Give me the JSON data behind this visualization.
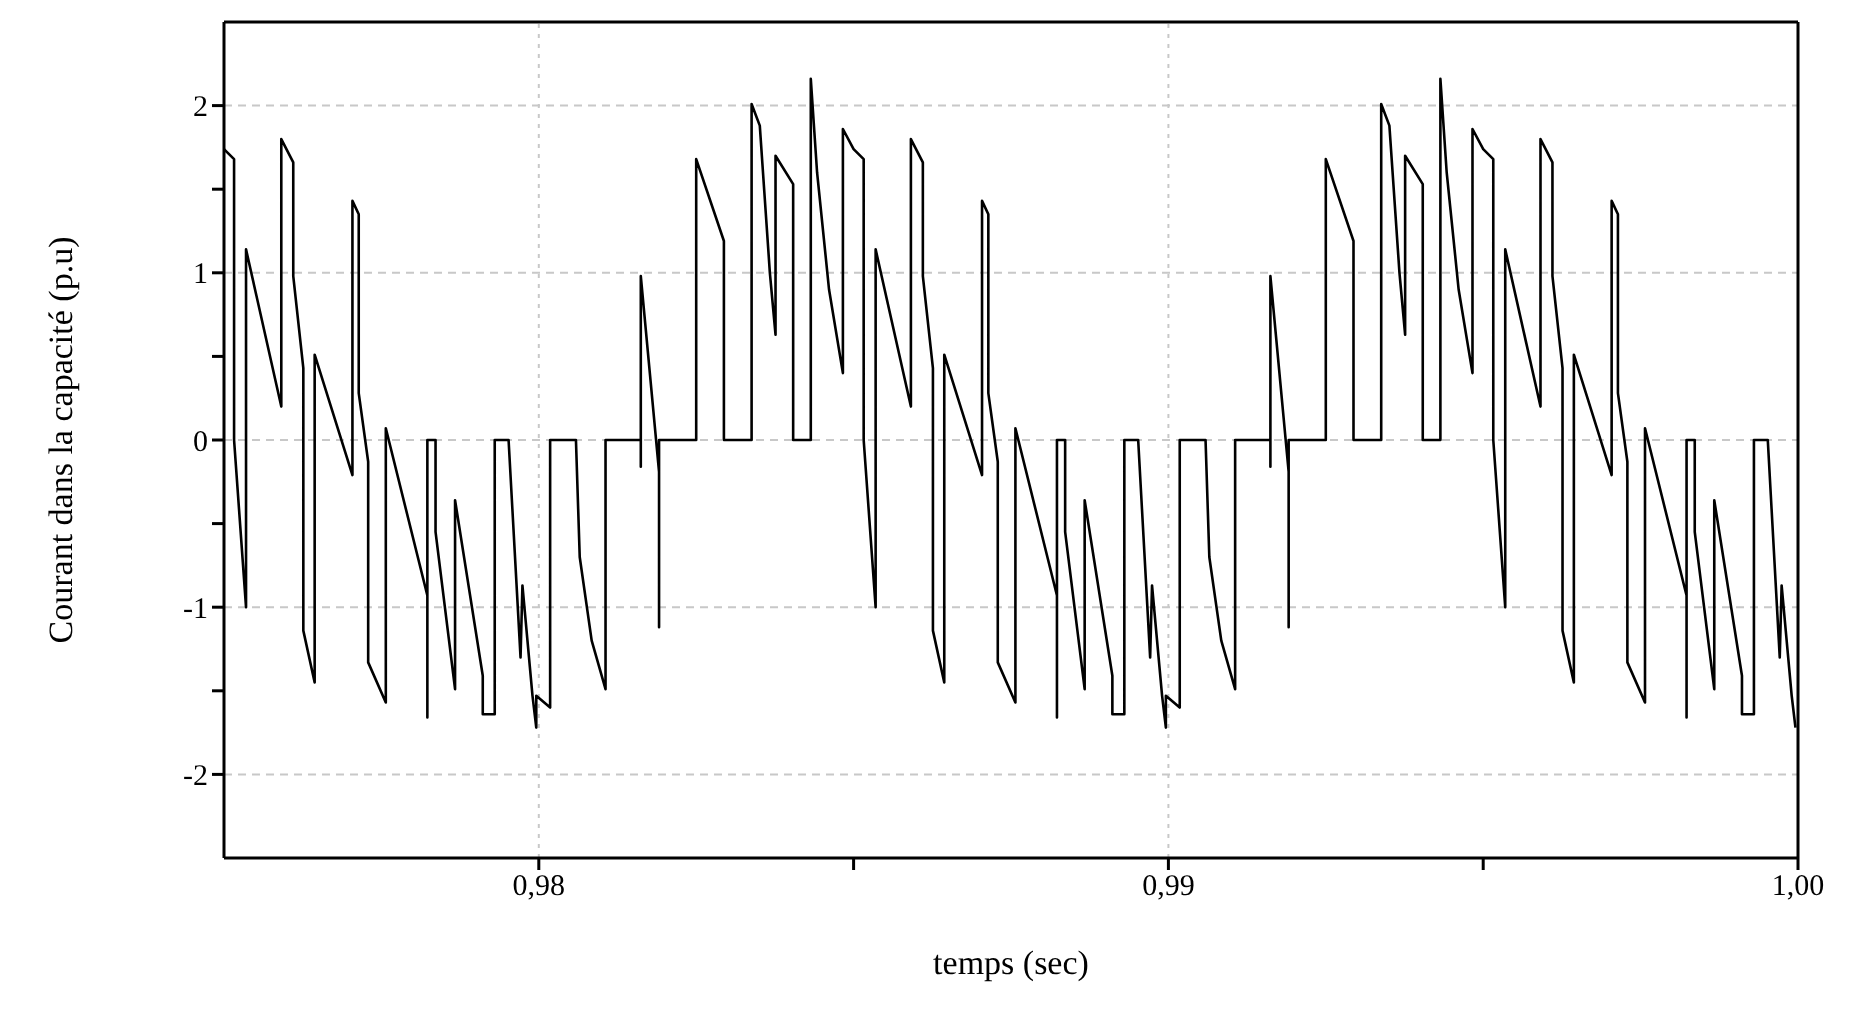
{
  "chart_data": {
    "type": "line",
    "xlabel": "temps (sec)",
    "ylabel": "Courant dans la capacité (p.u)",
    "xlim": [
      0.975,
      1.0
    ],
    "ylim": [
      -2.5,
      2.5
    ],
    "xticks": [
      {
        "value": 0.98,
        "label": "0,98"
      },
      {
        "value": 0.985,
        "label": null
      },
      {
        "value": 0.99,
        "label": "0,99"
      },
      {
        "value": 0.995,
        "label": null
      },
      {
        "value": 1.0,
        "label": "1,00"
      }
    ],
    "yticks": [
      -2,
      {
        "value": -1.5,
        "label": null
      },
      -1,
      {
        "value": -0.5,
        "label": null
      },
      0,
      {
        "value": 0.5,
        "label": null
      },
      1,
      {
        "value": 1.5,
        "label": null
      },
      2
    ],
    "grid": true,
    "marker": "none",
    "line_style": "solid",
    "series": [
      {
        "color": "#000000",
        "x": [
          0.975,
          0.97516,
          0.97516,
          0.97535,
          0.97535,
          0.97591,
          0.97591,
          0.9761,
          0.9761,
          0.97626,
          0.97626,
          0.97644,
          0.97644,
          0.97704,
          0.97704,
          0.97714,
          0.97714,
          0.97729,
          0.97729,
          0.97757,
          0.97757,
          0.97823,
          0.97823,
          0.97823,
          0.97836,
          0.97836,
          0.97867,
          0.97867,
          0.97911,
          0.97911,
          0.9793,
          0.9793,
          0.97952,
          0.97971,
          0.97974,
          0.9799,
          0.97996,
          0.97996,
          0.98018,
          0.98018,
          0.98059,
          0.98065,
          0.98084,
          0.98106,
          0.98106,
          0.98162,
          0.98162,
          0.98162,
          0.98191,
          0.98191,
          0.98191,
          0.9825,
          0.9825,
          0.98294,
          0.98294,
          0.98338,
          0.98338,
          0.98351,
          0.98367,
          0.98376,
          0.98376,
          0.98404,
          0.98404,
          0.98432,
          0.98432,
          0.98442,
          0.98461,
          0.98483,
          0.98483,
          0.985,
          0.98516,
          0.98516,
          0.98535,
          0.98535,
          0.98591,
          0.98591,
          0.9861,
          0.9861,
          0.98626,
          0.98626,
          0.98644,
          0.98644,
          0.98704,
          0.98704,
          0.98714,
          0.98714,
          0.98729,
          0.98729,
          0.98757,
          0.98757,
          0.98823,
          0.98823,
          0.98823,
          0.98836,
          0.98836,
          0.98867,
          0.98867,
          0.98911,
          0.98911,
          0.9893,
          0.9893,
          0.98952,
          0.98971,
          0.98974,
          0.9899,
          0.98996,
          0.98996,
          0.99018,
          0.99018,
          0.99059,
          0.99065,
          0.99084,
          0.99106,
          0.99106,
          0.99162,
          0.99162,
          0.99162,
          0.99191,
          0.99191,
          0.99191,
          0.9925,
          0.9925,
          0.99294,
          0.99294,
          0.99338,
          0.99338,
          0.99351,
          0.99367,
          0.99376,
          0.99376,
          0.99404,
          0.99404,
          0.99432,
          0.99432,
          0.99442,
          0.99461,
          0.99483,
          0.99483,
          0.995,
          0.99516,
          0.99516,
          0.99535,
          0.99535,
          0.99591,
          0.99591,
          0.9961,
          0.9961,
          0.99626,
          0.99626,
          0.99644,
          0.99644,
          0.99704,
          0.99704,
          0.99714,
          0.99714,
          0.99729,
          0.99729,
          0.99757,
          0.99757,
          0.99823,
          0.99823,
          0.99823,
          0.99836,
          0.99836,
          0.99867,
          0.99867,
          0.99911,
          0.99911,
          0.9993,
          0.9993,
          0.99952,
          0.99971,
          0.99974,
          0.9999,
          0.99996
        ],
        "values": [
          1.74,
          1.68,
          0,
          -1.0,
          1.14,
          0.2,
          1.8,
          1.66,
          0.98,
          0.43,
          -1.14,
          -1.45,
          0.51,
          -0.21,
          1.43,
          1.35,
          0.28,
          -0.13,
          -1.33,
          -1.57,
          0.07,
          -0.93,
          -1.66,
          0,
          0,
          -0.55,
          -1.49,
          -0.36,
          -1.41,
          -1.64,
          -1.64,
          0,
          0,
          -1.3,
          -0.87,
          -1.53,
          -1.72,
          -1.53,
          -1.6,
          0,
          0,
          -0.7,
          -1.2,
          -1.49,
          0,
          0,
          -0.16,
          0.98,
          -0.19,
          -1.12,
          0,
          0,
          1.68,
          1.19,
          0,
          0,
          2.01,
          1.88,
          1.0,
          0.63,
          1.7,
          1.53,
          0,
          0,
          2.16,
          1.6,
          0.9,
          0.4,
          1.86,
          1.74,
          1.68,
          0,
          -1.0,
          1.14,
          0.2,
          1.8,
          1.66,
          0.98,
          0.43,
          -1.14,
          -1.45,
          0.51,
          -0.21,
          1.43,
          1.35,
          0.28,
          -0.13,
          -1.33,
          -1.57,
          0.07,
          -0.93,
          -1.66,
          0,
          0,
          -0.55,
          -1.49,
          -0.36,
          -1.41,
          -1.64,
          -1.64,
          0,
          0,
          -1.3,
          -0.87,
          -1.53,
          -1.72,
          -1.53,
          -1.6,
          0,
          0,
          -0.7,
          -1.2,
          -1.49,
          0,
          0,
          -0.16,
          0.98,
          -0.19,
          -1.12,
          0,
          0,
          1.68,
          1.19,
          0,
          0,
          2.01,
          1.88,
          1.0,
          0.63,
          1.7,
          1.53,
          0,
          0,
          2.16,
          1.6,
          0.9,
          0.4,
          1.86,
          1.74,
          1.68,
          0,
          -1.0,
          1.14,
          0.2,
          1.8,
          1.66,
          0.98,
          0.43,
          -1.14,
          -1.45,
          0.51,
          -0.21,
          1.43,
          1.35,
          0.28,
          -0.13,
          -1.33,
          -1.57,
          0.07,
          -0.93,
          -1.66,
          0,
          0,
          -0.55,
          -1.49,
          -0.36,
          -1.41,
          -1.64,
          -1.64,
          0,
          0,
          -1.3,
          -0.87,
          -1.53,
          -1.72
        ]
      }
    ]
  }
}
